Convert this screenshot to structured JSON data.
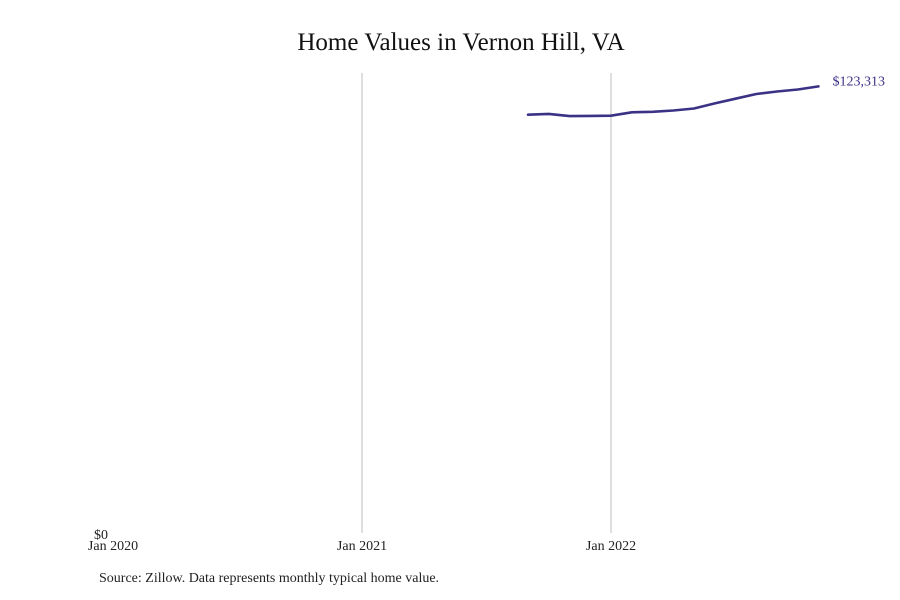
{
  "chart_data": {
    "type": "line",
    "title": "Home Values in Vernon Hill, VA",
    "xlabel": "",
    "ylabel": "",
    "x_ticks": [
      "Jan 2020",
      "Jan 2021",
      "Jan 2022"
    ],
    "y_ticks": [
      "$0"
    ],
    "ylim": [
      0,
      127000
    ],
    "xlim": [
      "2020-01",
      "2022-12"
    ],
    "grid": "vertical lines at Jan 2021 and Jan 2022",
    "series": [
      {
        "color": "#3b3286",
        "points": [
          {
            "x": "2021-09",
            "y": 115500
          },
          {
            "x": "2021-10",
            "y": 115700
          },
          {
            "x": "2021-11",
            "y": 115100
          },
          {
            "x": "2021-12",
            "y": 115150
          },
          {
            "x": "2022-01",
            "y": 115200
          },
          {
            "x": "2022-02",
            "y": 116150
          },
          {
            "x": "2022-03",
            "y": 116300
          },
          {
            "x": "2022-04",
            "y": 116650
          },
          {
            "x": "2022-05",
            "y": 117200
          },
          {
            "x": "2022-06",
            "y": 118600
          },
          {
            "x": "2022-07",
            "y": 119900
          },
          {
            "x": "2022-08",
            "y": 121200
          },
          {
            "x": "2022-09",
            "y": 121900
          },
          {
            "x": "2022-10",
            "y": 122450
          },
          {
            "x": "2022-11",
            "y": 123313
          }
        ]
      }
    ],
    "end_label": "$123,313"
  },
  "footer": {
    "source": "Source: Zillow. Data represents monthly typical home value."
  }
}
